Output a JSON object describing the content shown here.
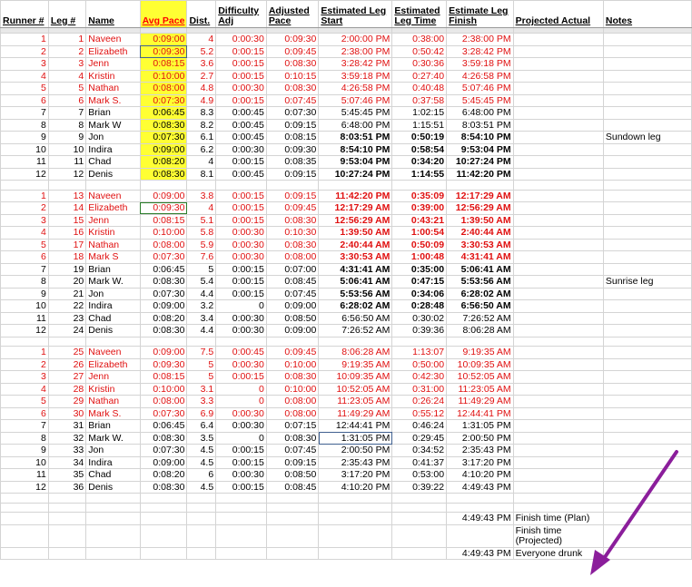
{
  "headers": {
    "runner": "Runner #",
    "leg": "Leg #",
    "name": "Name",
    "pace": "Avg Pace",
    "dist": "Dist.",
    "diff": "Difficulty Adj",
    "adj": "Adjusted Pace",
    "start": "Estimated Leg Start",
    "legtime": "Estimated Leg Time",
    "finish": "Estimate Leg Finish",
    "proj": "Projected Actual",
    "notes": "Notes"
  },
  "sections": [
    [
      {
        "runner": "1",
        "leg": "1",
        "name": "Naveen",
        "pace": "0:09:00",
        "dist": "4",
        "diff": "0:00:30",
        "adj": "0:09:30",
        "start": "2:00:00 PM",
        "legtime": "0:38:00",
        "finish": "2:38:00 PM",
        "notes": "",
        "color": "red",
        "bold": false
      },
      {
        "runner": "2",
        "leg": "2",
        "name": "Elizabeth",
        "pace": "0:09:30",
        "dist": "5.2",
        "diff": "0:00:15",
        "adj": "0:09:45",
        "start": "2:38:00 PM",
        "legtime": "0:50:42",
        "finish": "3:28:42 PM",
        "notes": "",
        "color": "red",
        "bold": false
      },
      {
        "runner": "3",
        "leg": "3",
        "name": "Jenn",
        "pace": "0:08:15",
        "dist": "3.6",
        "diff": "0:00:15",
        "adj": "0:08:30",
        "start": "3:28:42 PM",
        "legtime": "0:30:36",
        "finish": "3:59:18 PM",
        "notes": "",
        "color": "red",
        "bold": false
      },
      {
        "runner": "4",
        "leg": "4",
        "name": "Kristin",
        "pace": "0:10:00",
        "dist": "2.7",
        "diff": "0:00:15",
        "adj": "0:10:15",
        "start": "3:59:18 PM",
        "legtime": "0:27:40",
        "finish": "4:26:58 PM",
        "notes": "",
        "color": "red",
        "bold": false
      },
      {
        "runner": "5",
        "leg": "5",
        "name": "Nathan",
        "pace": "0:08:00",
        "dist": "4.8",
        "diff": "0:00:30",
        "adj": "0:08:30",
        "start": "4:26:58 PM",
        "legtime": "0:40:48",
        "finish": "5:07:46 PM",
        "notes": "",
        "color": "red",
        "bold": false
      },
      {
        "runner": "6",
        "leg": "6",
        "name": "Mark S.",
        "pace": "0:07:30",
        "dist": "4.9",
        "diff": "0:00:15",
        "adj": "0:07:45",
        "start": "5:07:46 PM",
        "legtime": "0:37:58",
        "finish": "5:45:45 PM",
        "notes": "",
        "color": "red",
        "bold": false
      },
      {
        "runner": "7",
        "leg": "7",
        "name": "Brian",
        "pace": "0:06:45",
        "dist": "8.3",
        "diff": "0:00:45",
        "adj": "0:07:30",
        "start": "5:45:45 PM",
        "legtime": "1:02:15",
        "finish": "6:48:00 PM",
        "notes": "",
        "color": "black",
        "bold": false
      },
      {
        "runner": "8",
        "leg": "8",
        "name": "Mark W",
        "pace": "0:08:30",
        "dist": "8.2",
        "diff": "0:00:45",
        "adj": "0:09:15",
        "start": "6:48:00 PM",
        "legtime": "1:15:51",
        "finish": "8:03:51 PM",
        "notes": "",
        "color": "black",
        "bold": false
      },
      {
        "runner": "9",
        "leg": "9",
        "name": "Jon",
        "pace": "0:07:30",
        "dist": "6.1",
        "diff": "0:00:45",
        "adj": "0:08:15",
        "start": "8:03:51 PM",
        "legtime": "0:50:19",
        "finish": "8:54:10 PM",
        "notes": "Sundown leg",
        "color": "black",
        "bold": true
      },
      {
        "runner": "10",
        "leg": "10",
        "name": "Indira",
        "pace": "0:09:00",
        "dist": "6.2",
        "diff": "0:00:30",
        "adj": "0:09:30",
        "start": "8:54:10 PM",
        "legtime": "0:58:54",
        "finish": "9:53:04 PM",
        "notes": "",
        "color": "black",
        "bold": true
      },
      {
        "runner": "11",
        "leg": "11",
        "name": "Chad",
        "pace": "0:08:20",
        "dist": "4",
        "diff": "0:00:15",
        "adj": "0:08:35",
        "start": "9:53:04 PM",
        "legtime": "0:34:20",
        "finish": "10:27:24 PM",
        "notes": "",
        "color": "black",
        "bold": true
      },
      {
        "runner": "12",
        "leg": "12",
        "name": "Denis",
        "pace": "0:08:30",
        "dist": "8.1",
        "diff": "0:00:45",
        "adj": "0:09:15",
        "start": "10:27:24 PM",
        "legtime": "1:14:55",
        "finish": "11:42:20 PM",
        "notes": "",
        "color": "black",
        "bold": true
      }
    ],
    [
      {
        "runner": "1",
        "leg": "13",
        "name": "Naveen",
        "pace": "0:09:00",
        "dist": "3.8",
        "diff": "0:00:15",
        "adj": "0:09:15",
        "start": "11:42:20 PM",
        "legtime": "0:35:09",
        "finish": "12:17:29 AM",
        "notes": "",
        "color": "red",
        "bold": true
      },
      {
        "runner": "2",
        "leg": "14",
        "name": "Elizabeth",
        "pace": "0:09:30",
        "dist": "4",
        "diff": "0:00:15",
        "adj": "0:09:45",
        "start": "12:17:29 AM",
        "legtime": "0:39:00",
        "finish": "12:56:29 AM",
        "notes": "",
        "color": "red",
        "bold": true
      },
      {
        "runner": "3",
        "leg": "15",
        "name": "Jenn",
        "pace": "0:08:15",
        "dist": "5.1",
        "diff": "0:00:15",
        "adj": "0:08:30",
        "start": "12:56:29 AM",
        "legtime": "0:43:21",
        "finish": "1:39:50 AM",
        "notes": "",
        "color": "red",
        "bold": true
      },
      {
        "runner": "4",
        "leg": "16",
        "name": "Kristin",
        "pace": "0:10:00",
        "dist": "5.8",
        "diff": "0:00:30",
        "adj": "0:10:30",
        "start": "1:39:50 AM",
        "legtime": "1:00:54",
        "finish": "2:40:44 AM",
        "notes": "",
        "color": "red",
        "bold": true
      },
      {
        "runner": "5",
        "leg": "17",
        "name": "Nathan",
        "pace": "0:08:00",
        "dist": "5.9",
        "diff": "0:00:30",
        "adj": "0:08:30",
        "start": "2:40:44 AM",
        "legtime": "0:50:09",
        "finish": "3:30:53 AM",
        "notes": "",
        "color": "red",
        "bold": true
      },
      {
        "runner": "6",
        "leg": "18",
        "name": "Mark S",
        "pace": "0:07:30",
        "dist": "7.6",
        "diff": "0:00:30",
        "adj": "0:08:00",
        "start": "3:30:53 AM",
        "legtime": "1:00:48",
        "finish": "4:31:41 AM",
        "notes": "",
        "color": "red",
        "bold": true
      },
      {
        "runner": "7",
        "leg": "19",
        "name": "Brian",
        "pace": "0:06:45",
        "dist": "5",
        "diff": "0:00:15",
        "adj": "0:07:00",
        "start": "4:31:41 AM",
        "legtime": "0:35:00",
        "finish": "5:06:41 AM",
        "notes": "",
        "color": "black",
        "bold": true
      },
      {
        "runner": "8",
        "leg": "20",
        "name": "Mark W.",
        "pace": "0:08:30",
        "dist": "5.4",
        "diff": "0:00:15",
        "adj": "0:08:45",
        "start": "5:06:41 AM",
        "legtime": "0:47:15",
        "finish": "5:53:56 AM",
        "notes": "Sunrise leg",
        "color": "black",
        "bold": true
      },
      {
        "runner": "9",
        "leg": "21",
        "name": "Jon",
        "pace": "0:07:30",
        "dist": "4.4",
        "diff": "0:00:15",
        "adj": "0:07:45",
        "start": "5:53:56 AM",
        "legtime": "0:34:06",
        "finish": "6:28:02 AM",
        "notes": "",
        "color": "black",
        "bold": true
      },
      {
        "runner": "10",
        "leg": "22",
        "name": "Indira",
        "pace": "0:09:00",
        "dist": "3.2",
        "diff": "0",
        "adj": "0:09:00",
        "start": "6:28:02 AM",
        "legtime": "0:28:48",
        "finish": "6:56:50 AM",
        "notes": "",
        "color": "black",
        "bold": true
      },
      {
        "runner": "11",
        "leg": "23",
        "name": "Chad",
        "pace": "0:08:20",
        "dist": "3.4",
        "diff": "0:00:30",
        "adj": "0:08:50",
        "start": "6:56:50 AM",
        "legtime": "0:30:02",
        "finish": "7:26:52 AM",
        "notes": "",
        "color": "black",
        "bold": false
      },
      {
        "runner": "12",
        "leg": "24",
        "name": "Denis",
        "pace": "0:08:30",
        "dist": "4.4",
        "diff": "0:00:30",
        "adj": "0:09:00",
        "start": "7:26:52 AM",
        "legtime": "0:39:36",
        "finish": "8:06:28 AM",
        "notes": "",
        "color": "black",
        "bold": false
      }
    ],
    [
      {
        "runner": "1",
        "leg": "25",
        "name": "Naveen",
        "pace": "0:09:00",
        "dist": "7.5",
        "diff": "0:00:45",
        "adj": "0:09:45",
        "start": "8:06:28 AM",
        "legtime": "1:13:07",
        "finish": "9:19:35 AM",
        "notes": "",
        "color": "red",
        "bold": false
      },
      {
        "runner": "2",
        "leg": "26",
        "name": "Elizabeth",
        "pace": "0:09:30",
        "dist": "5",
        "diff": "0:00:30",
        "adj": "0:10:00",
        "start": "9:19:35 AM",
        "legtime": "0:50:00",
        "finish": "10:09:35 AM",
        "notes": "",
        "color": "red",
        "bold": false
      },
      {
        "runner": "3",
        "leg": "27",
        "name": "Jenn",
        "pace": "0:08:15",
        "dist": "5",
        "diff": "0:00:15",
        "adj": "0:08:30",
        "start": "10:09:35 AM",
        "legtime": "0:42:30",
        "finish": "10:52:05 AM",
        "notes": "",
        "color": "red",
        "bold": false
      },
      {
        "runner": "4",
        "leg": "28",
        "name": "Kristin",
        "pace": "0:10:00",
        "dist": "3.1",
        "diff": "0",
        "adj": "0:10:00",
        "start": "10:52:05 AM",
        "legtime": "0:31:00",
        "finish": "11:23:05 AM",
        "notes": "",
        "color": "red",
        "bold": false
      },
      {
        "runner": "5",
        "leg": "29",
        "name": "Nathan",
        "pace": "0:08:00",
        "dist": "3.3",
        "diff": "0",
        "adj": "0:08:00",
        "start": "11:23:05 AM",
        "legtime": "0:26:24",
        "finish": "11:49:29 AM",
        "notes": "",
        "color": "red",
        "bold": false
      },
      {
        "runner": "6",
        "leg": "30",
        "name": "Mark S.",
        "pace": "0:07:30",
        "dist": "6.9",
        "diff": "0:00:30",
        "adj": "0:08:00",
        "start": "11:49:29 AM",
        "legtime": "0:55:12",
        "finish": "12:44:41 PM",
        "notes": "",
        "color": "red",
        "bold": false
      },
      {
        "runner": "7",
        "leg": "31",
        "name": "Brian",
        "pace": "0:06:45",
        "dist": "6.4",
        "diff": "0:00:30",
        "adj": "0:07:15",
        "start": "12:44:41 PM",
        "legtime": "0:46:24",
        "finish": "1:31:05 PM",
        "notes": "",
        "color": "black",
        "bold": false
      },
      {
        "runner": "8",
        "leg": "32",
        "name": "Mark W.",
        "pace": "0:08:30",
        "dist": "3.5",
        "diff": "0",
        "adj": "0:08:30",
        "start": "1:31:05 PM",
        "legtime": "0:29:45",
        "finish": "2:00:50 PM",
        "notes": "",
        "color": "black",
        "bold": false
      },
      {
        "runner": "9",
        "leg": "33",
        "name": "Jon",
        "pace": "0:07:30",
        "dist": "4.5",
        "diff": "0:00:15",
        "adj": "0:07:45",
        "start": "2:00:50 PM",
        "legtime": "0:34:52",
        "finish": "2:35:43 PM",
        "notes": "",
        "color": "black",
        "bold": false
      },
      {
        "runner": "10",
        "leg": "34",
        "name": "Indira",
        "pace": "0:09:00",
        "dist": "4.5",
        "diff": "0:00:15",
        "adj": "0:09:15",
        "start": "2:35:43 PM",
        "legtime": "0:41:37",
        "finish": "3:17:20 PM",
        "notes": "",
        "color": "black",
        "bold": false
      },
      {
        "runner": "11",
        "leg": "35",
        "name": "Chad",
        "pace": "0:08:20",
        "dist": "6",
        "diff": "0:00:30",
        "adj": "0:08:50",
        "start": "3:17:20 PM",
        "legtime": "0:53:00",
        "finish": "4:10:20 PM",
        "notes": "",
        "color": "black",
        "bold": false
      },
      {
        "runner": "12",
        "leg": "36",
        "name": "Denis",
        "pace": "0:08:30",
        "dist": "4.5",
        "diff": "0:00:15",
        "adj": "0:08:45",
        "start": "4:10:20 PM",
        "legtime": "0:39:22",
        "finish": "4:49:43 PM",
        "notes": "",
        "color": "black",
        "bold": false
      }
    ]
  ],
  "summary": [
    {
      "value": "4:49:43 PM",
      "label": "Finish time (Plan)"
    },
    {
      "value": "",
      "label": "Finish time (Projected)"
    },
    {
      "value": "4:49:43 PM",
      "label": "Everyone drunk"
    }
  ],
  "colors": {
    "red_text": "#e01010",
    "highlight": "#ffff33",
    "arrow": "#8b1e9b"
  },
  "annotation_icon": "purple-arrow-icon"
}
